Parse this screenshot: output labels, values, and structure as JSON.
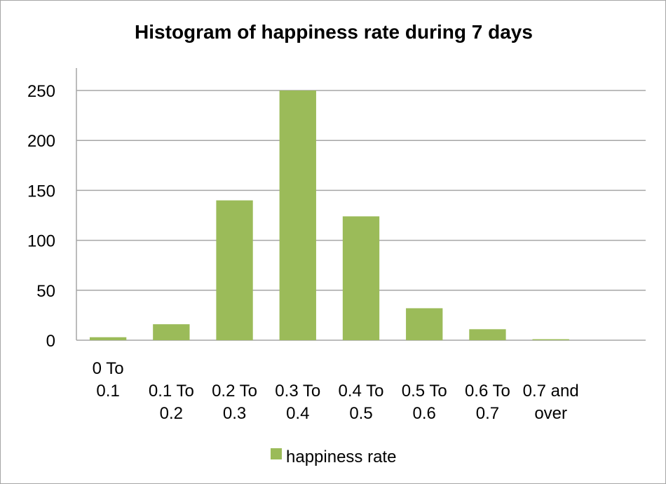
{
  "chart_data": {
    "type": "bar",
    "title": "Histogram of happiness rate during 7 days",
    "xlabel": "",
    "ylabel": "",
    "categories": [
      [
        "0 To",
        "0.1"
      ],
      [
        "0.1 To",
        "0.2"
      ],
      [
        "0.2 To",
        "0.3"
      ],
      [
        "0.3 To",
        "0.4"
      ],
      [
        "0.4 To",
        "0.5"
      ],
      [
        "0.5 To",
        "0.6"
      ],
      [
        "0.6 To",
        "0.7"
      ],
      [
        "0.7 and",
        "over"
      ]
    ],
    "series": [
      {
        "name": "happiness rate",
        "color": "#9bbb59",
        "values": [
          3,
          16,
          140,
          250,
          124,
          32,
          11,
          1
        ]
      }
    ],
    "ylim": [
      0,
      250
    ],
    "yticks": [
      0,
      50,
      100,
      150,
      200,
      250
    ],
    "grid": true,
    "legend_position": "bottom",
    "colors": {
      "gridline": "#a6a6a6",
      "axis": "#a6a6a6",
      "border": "#a6a6a6"
    }
  }
}
